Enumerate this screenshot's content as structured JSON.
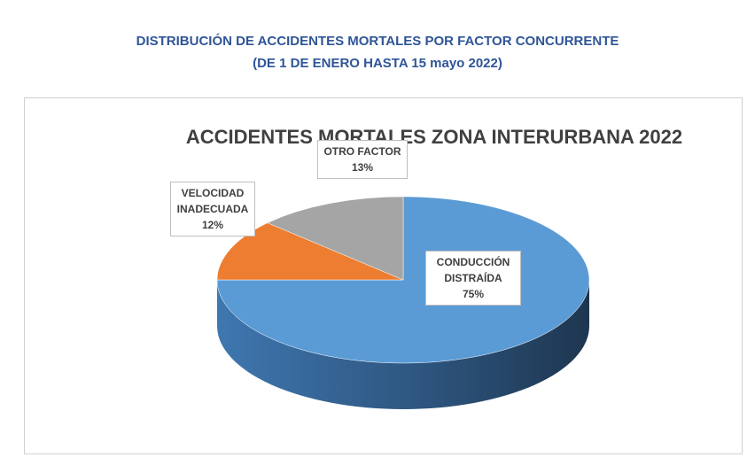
{
  "header": {
    "title_line1": "DISTRIBUCIÓN DE ACCIDENTES MORTALES POR FACTOR CONCURRENTE",
    "title_line2": "(DE 1 DE ENERO HASTA 15 mayo 2022)"
  },
  "chart_data": {
    "type": "pie",
    "title": "ACCIDENTES MORTALES ZONA INTERURBANA 2022",
    "categories": [
      "CONDUCCIÓN DISTRAÍDA",
      "VELOCIDAD INADECUADA",
      "OTRO FACTOR"
    ],
    "values": [
      75,
      12,
      13
    ],
    "value_labels": [
      "75%",
      "12%",
      "13%"
    ],
    "colors": [
      "#5b9bd5",
      "#ed7d31",
      "#a5a5a5"
    ]
  }
}
